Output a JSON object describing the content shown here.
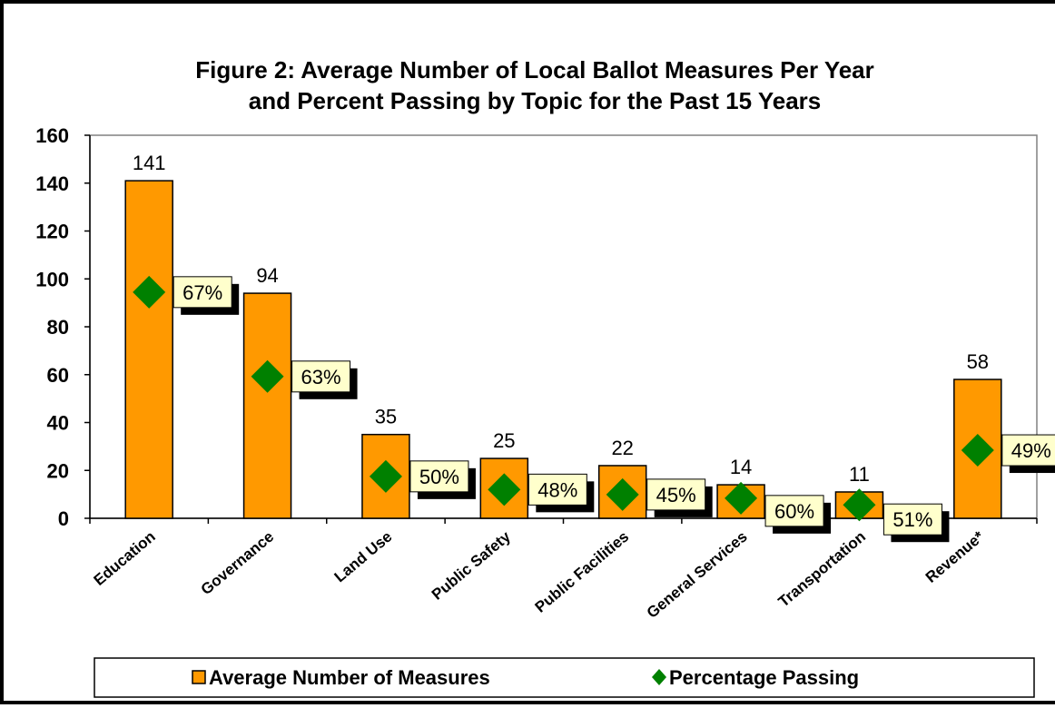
{
  "chart_data": {
    "type": "bar",
    "title": "Figure 2: Average Number of Local Ballot Measures Per Year",
    "subtitle": "and Percent Passing by Topic for the Past 15 Years",
    "categories": [
      "Education",
      "Governance",
      "Land Use",
      "Public Safety",
      "Public Facilities",
      "General Services",
      "Transportation",
      "Revenue*"
    ],
    "series": [
      {
        "name": "Average Number of Measures",
        "type": "bar",
        "values": [
          141,
          94,
          35,
          25,
          22,
          14,
          11,
          58
        ],
        "color": "#ff9900"
      },
      {
        "name": "Percentage Passing",
        "type": "scatter",
        "values": [
          67,
          63,
          50,
          48,
          45,
          60,
          51,
          49
        ],
        "labels": [
          "67%",
          "63%",
          "50%",
          "48%",
          "45%",
          "60%",
          "51%",
          "49%"
        ],
        "color": "#008000"
      }
    ],
    "ylim": [
      0,
      160
    ],
    "yticks": [
      0,
      20,
      40,
      60,
      80,
      100,
      120,
      140,
      160
    ],
    "legend_position": "bottom",
    "grid": false
  },
  "colors": {
    "bar_fill": "#ff9900",
    "marker_fill": "#008000",
    "label_box": "#ffffcc"
  }
}
